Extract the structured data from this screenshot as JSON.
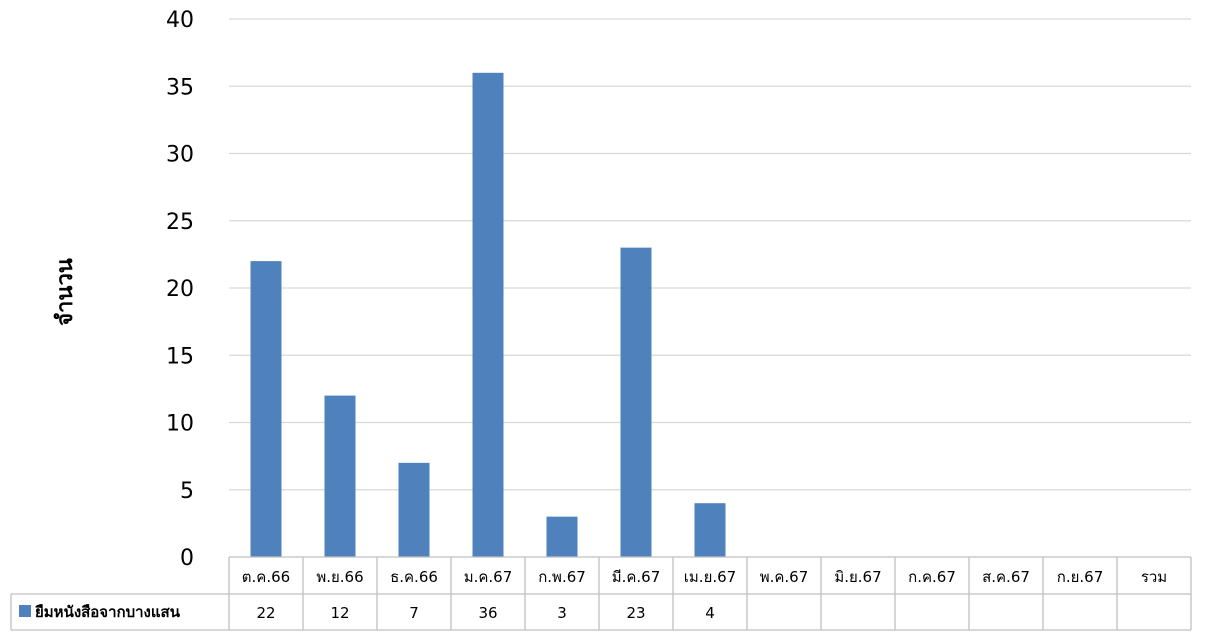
{
  "chart_data": {
    "type": "bar",
    "xlabel": "",
    "ylabel": "จำนวน",
    "ylim": [
      0,
      40
    ],
    "yticks": [
      0,
      5,
      10,
      15,
      20,
      25,
      30,
      35,
      40
    ],
    "grid": true,
    "legend_placement": "data-table-left",
    "categories": [
      "ต.ค.66",
      "พ.ย.66",
      "ธ.ค.66",
      "ม.ค.67",
      "ก.พ.67",
      "มี.ค.67",
      "เม.ย.67",
      "พ.ค.67",
      "มิ.ย.67",
      "ก.ค.67",
      "ส.ค.67",
      "ก.ย.67",
      "รวม"
    ],
    "series": [
      {
        "name": "ยืมหนังสือจากบางแสน",
        "color": "#4F81BD",
        "values": [
          22,
          12,
          7,
          36,
          3,
          23,
          4,
          null,
          null,
          null,
          null,
          null,
          null
        ]
      }
    ]
  }
}
